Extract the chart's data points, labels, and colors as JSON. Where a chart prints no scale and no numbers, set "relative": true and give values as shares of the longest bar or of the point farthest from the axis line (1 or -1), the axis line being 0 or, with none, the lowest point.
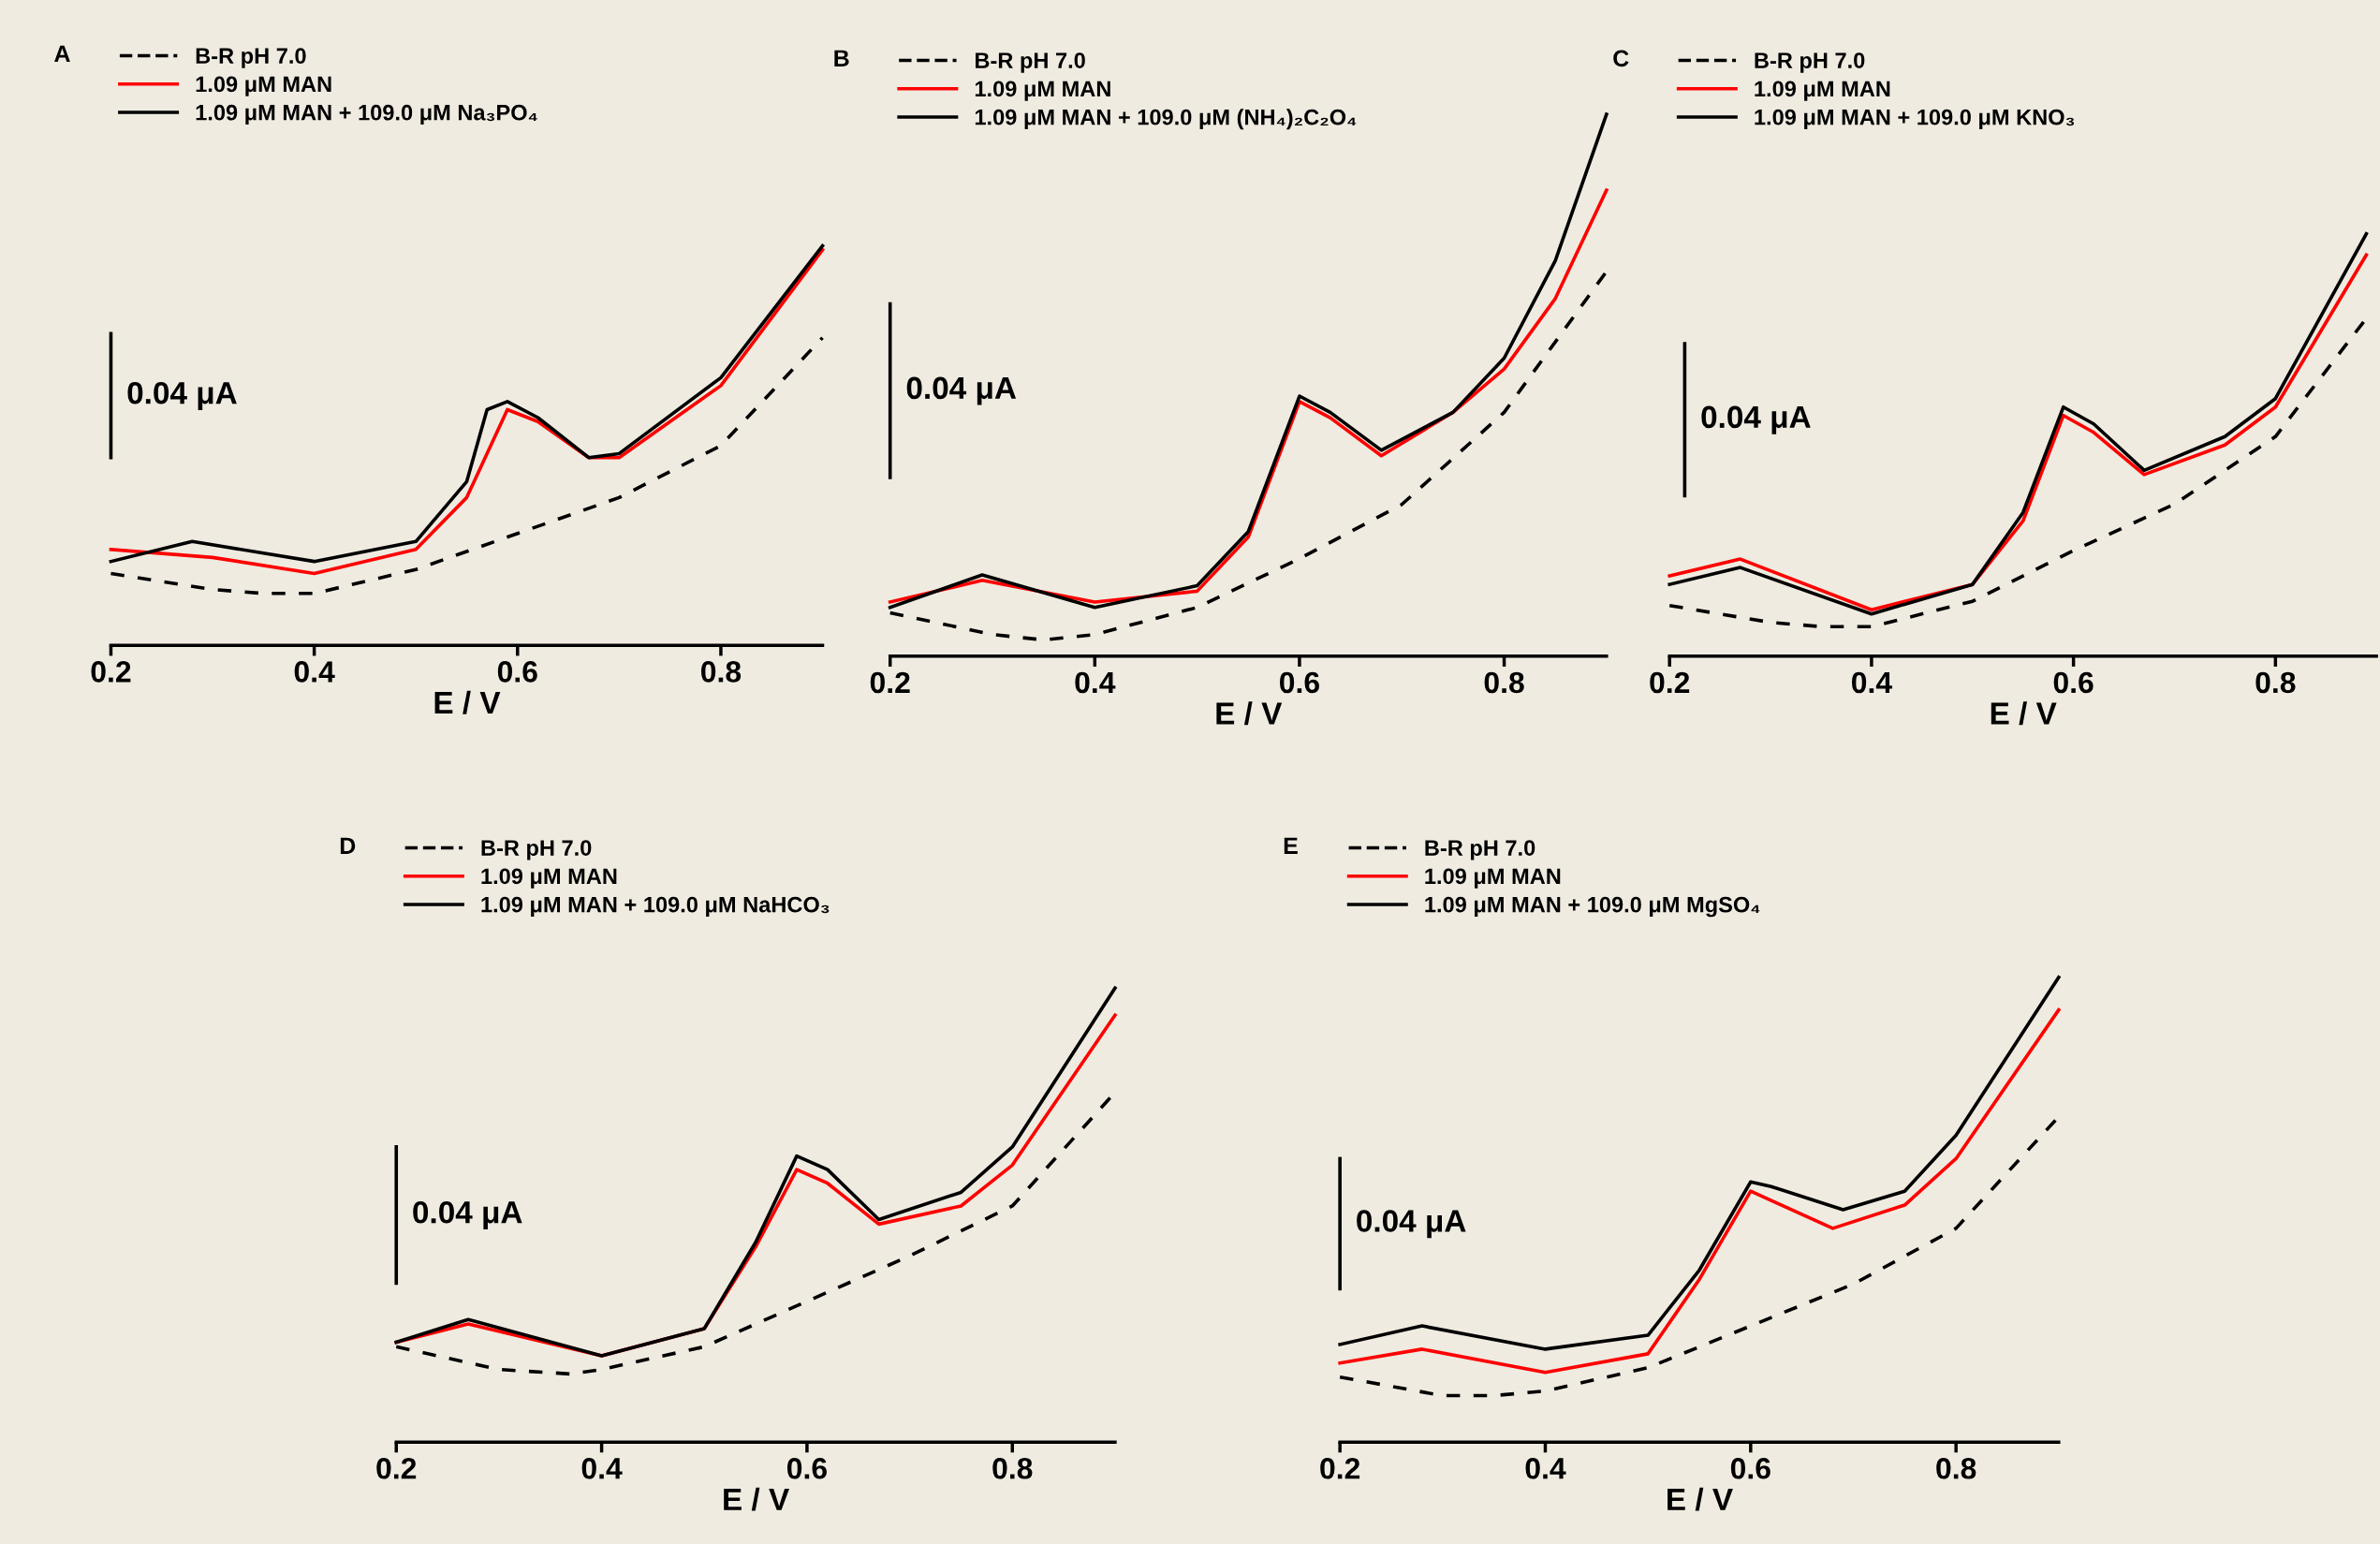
{
  "chart_data": [
    {
      "type": "line",
      "title": "A",
      "xlabel": "E / V",
      "relative": true,
      "xlim": [
        0.2,
        0.9
      ],
      "xticks": [
        0.2,
        0.4,
        0.6,
        0.8
      ],
      "tick_labels": "x",
      "grid": false,
      "legend": "top left",
      "annotations": [
        "0.04 μA"
      ],
      "series": [
        {
          "name": "B-R pH 7.0",
          "color": "#000000",
          "line_style": "dashed",
          "x": [
            0.2,
            0.3,
            0.35,
            0.4,
            0.5,
            0.6,
            0.7,
            0.8,
            0.9
          ],
          "values": [
            0.18,
            0.14,
            0.13,
            0.13,
            0.19,
            0.28,
            0.37,
            0.5,
            0.77
          ]
        },
        {
          "name": "1.09 μM MAN",
          "color": "#ff0000",
          "line_style": "solid",
          "x": [
            0.2,
            0.3,
            0.4,
            0.5,
            0.55,
            0.59,
            0.62,
            0.67,
            0.7,
            0.8,
            0.9
          ],
          "values": [
            0.24,
            0.22,
            0.18,
            0.24,
            0.37,
            0.59,
            0.56,
            0.47,
            0.47,
            0.65,
            0.99
          ]
        },
        {
          "name": "1.09 μM MAN + 109.0 μM Na₃PO₄",
          "color": "#000000",
          "line_style": "solid",
          "x": [
            0.2,
            0.28,
            0.4,
            0.5,
            0.55,
            0.57,
            0.59,
            0.62,
            0.67,
            0.7,
            0.8,
            0.9
          ],
          "values": [
            0.21,
            0.26,
            0.21,
            0.26,
            0.41,
            0.59,
            0.61,
            0.57,
            0.47,
            0.48,
            0.67,
            1.0
          ]
        },
        {
          "color": "#000000",
          "line_style": "solid",
          "x": [
            0.2,
            0.2
          ],
          "values": [
            0.47,
            0.78
          ]
        }
      ]
    },
    {
      "type": "line",
      "title": "B",
      "xlabel": "E / V",
      "relative": true,
      "xlim": [
        0.2,
        0.9
      ],
      "xticks": [
        0.2,
        0.4,
        0.6,
        0.8
      ],
      "tick_labels": "x",
      "grid": false,
      "legend": "top left",
      "annotations": [
        "0.04 μA"
      ],
      "series": [
        {
          "name": "B-R pH 7.0",
          "color": "#000000",
          "line_style": "dashed",
          "x": [
            0.2,
            0.3,
            0.35,
            0.4,
            0.5,
            0.6,
            0.7,
            0.8,
            0.9
          ],
          "values": [
            0.08,
            0.04,
            0.03,
            0.04,
            0.09,
            0.18,
            0.28,
            0.45,
            0.71
          ]
        },
        {
          "name": "1.09 μM MAN",
          "color": "#ff0000",
          "line_style": "solid",
          "x": [
            0.2,
            0.29,
            0.4,
            0.5,
            0.55,
            0.6,
            0.63,
            0.68,
            0.75,
            0.8,
            0.85,
            0.9
          ],
          "values": [
            0.1,
            0.14,
            0.1,
            0.12,
            0.22,
            0.47,
            0.44,
            0.37,
            0.45,
            0.53,
            0.66,
            0.86
          ]
        },
        {
          "name": "1.09 μM MAN + 109.0 μM (NH₄)₂C₂O₄",
          "color": "#000000",
          "line_style": "solid",
          "x": [
            0.2,
            0.29,
            0.4,
            0.5,
            0.55,
            0.6,
            0.63,
            0.68,
            0.75,
            0.8,
            0.85,
            0.9
          ],
          "values": [
            0.09,
            0.15,
            0.09,
            0.13,
            0.23,
            0.48,
            0.45,
            0.38,
            0.45,
            0.55,
            0.73,
            1.0
          ]
        },
        {
          "color": "#000000",
          "line_style": "solid",
          "x": [
            0.2,
            0.2
          ],
          "values": [
            0.33,
            0.65
          ]
        }
      ]
    },
    {
      "type": "line",
      "title": "C",
      "xlabel": "E / V",
      "relative": true,
      "xlim": [
        0.2,
        0.9
      ],
      "xticks": [
        0.2,
        0.4,
        0.6,
        0.8
      ],
      "tick_labels": "x",
      "grid": false,
      "legend": "top left",
      "annotations": [
        "0.04 μA"
      ],
      "series": [
        {
          "name": "B-R pH 7.0",
          "color": "#000000",
          "line_style": "dashed",
          "x": [
            0.2,
            0.3,
            0.35,
            0.4,
            0.5,
            0.6,
            0.7,
            0.8,
            0.89
          ],
          "values": [
            0.12,
            0.08,
            0.07,
            0.07,
            0.13,
            0.25,
            0.36,
            0.52,
            0.8
          ]
        },
        {
          "name": "1.09 μM MAN",
          "color": "#ff0000",
          "line_style": "solid",
          "x": [
            0.2,
            0.27,
            0.4,
            0.5,
            0.55,
            0.59,
            0.62,
            0.67,
            0.75,
            0.8,
            0.89
          ],
          "values": [
            0.19,
            0.23,
            0.11,
            0.17,
            0.32,
            0.57,
            0.53,
            0.43,
            0.5,
            0.59,
            0.95
          ]
        },
        {
          "name": "1.09 μM MAN + 109.0 μM KNO₃",
          "color": "#000000",
          "line_style": "solid",
          "x": [
            0.2,
            0.27,
            0.4,
            0.5,
            0.55,
            0.59,
            0.62,
            0.67,
            0.75,
            0.8,
            0.89
          ],
          "values": [
            0.17,
            0.21,
            0.1,
            0.17,
            0.34,
            0.59,
            0.55,
            0.44,
            0.52,
            0.61,
            1.0
          ]
        },
        {
          "color": "#000000",
          "line_style": "solid",
          "x": [
            0.215,
            0.215
          ],
          "values": [
            0.38,
            0.74
          ]
        }
      ]
    },
    {
      "type": "line",
      "title": "D",
      "xlabel": "E / V",
      "relative": true,
      "xlim": [
        0.2,
        0.9
      ],
      "xticks": [
        0.2,
        0.4,
        0.6,
        0.8
      ],
      "tick_labels": "x",
      "grid": false,
      "legend": "top left",
      "annotations": [
        "0.04 μA"
      ],
      "series": [
        {
          "name": "B-R pH 7.0",
          "color": "#000000",
          "line_style": "dashed",
          "x": [
            0.2,
            0.3,
            0.37,
            0.4,
            0.5,
            0.6,
            0.7,
            0.8,
            0.9
          ],
          "values": [
            0.21,
            0.16,
            0.15,
            0.16,
            0.21,
            0.31,
            0.41,
            0.52,
            0.77
          ]
        },
        {
          "name": "1.09 μM MAN",
          "color": "#ff0000",
          "line_style": "solid",
          "x": [
            0.2,
            0.27,
            0.4,
            0.5,
            0.55,
            0.59,
            0.62,
            0.67,
            0.75,
            0.8,
            0.9
          ],
          "values": [
            0.22,
            0.26,
            0.19,
            0.25,
            0.43,
            0.6,
            0.57,
            0.48,
            0.52,
            0.61,
            0.94
          ]
        },
        {
          "name": "1.09 μM MAN + 109.0 μM NaHCO₃",
          "color": "#000000",
          "line_style": "solid",
          "x": [
            0.2,
            0.27,
            0.4,
            0.5,
            0.55,
            0.59,
            0.62,
            0.67,
            0.75,
            0.8,
            0.9
          ],
          "values": [
            0.22,
            0.27,
            0.19,
            0.25,
            0.44,
            0.63,
            0.6,
            0.49,
            0.55,
            0.65,
            1.0
          ]
        },
        {
          "color": "#000000",
          "line_style": "solid",
          "x": [
            0.2,
            0.2
          ],
          "values": [
            0.35,
            0.65
          ]
        }
      ]
    },
    {
      "type": "line",
      "title": "E",
      "xlabel": "E / V",
      "relative": true,
      "xlim": [
        0.2,
        0.9
      ],
      "xticks": [
        0.2,
        0.4,
        0.6,
        0.8
      ],
      "tick_labels": "x",
      "grid": false,
      "legend": "top left",
      "annotations": [
        "0.04 μA"
      ],
      "series": [
        {
          "name": "B-R pH 7.0",
          "color": "#000000",
          "line_style": "dashed",
          "x": [
            0.2,
            0.3,
            0.35,
            0.4,
            0.5,
            0.6,
            0.7,
            0.8,
            0.9
          ],
          "values": [
            0.14,
            0.1,
            0.1,
            0.11,
            0.16,
            0.25,
            0.34,
            0.46,
            0.7
          ]
        },
        {
          "name": "1.09 μM MAN",
          "color": "#ff0000",
          "line_style": "solid",
          "x": [
            0.2,
            0.28,
            0.4,
            0.5,
            0.55,
            0.6,
            0.62,
            0.68,
            0.75,
            0.8,
            0.9
          ],
          "values": [
            0.17,
            0.2,
            0.15,
            0.19,
            0.35,
            0.54,
            0.52,
            0.46,
            0.51,
            0.61,
            0.93
          ]
        },
        {
          "name": "1.09 μM MAN + 109.0 μM MgSO₄",
          "color": "#000000",
          "line_style": "solid",
          "x": [
            0.2,
            0.28,
            0.4,
            0.5,
            0.55,
            0.6,
            0.62,
            0.69,
            0.75,
            0.8,
            0.9
          ],
          "values": [
            0.21,
            0.25,
            0.2,
            0.23,
            0.37,
            0.56,
            0.55,
            0.5,
            0.54,
            0.66,
            1.0
          ]
        },
        {
          "color": "#000000",
          "line_style": "solid",
          "x": [
            0.2,
            0.2
          ],
          "values": [
            0.33,
            0.61
          ]
        }
      ]
    }
  ]
}
